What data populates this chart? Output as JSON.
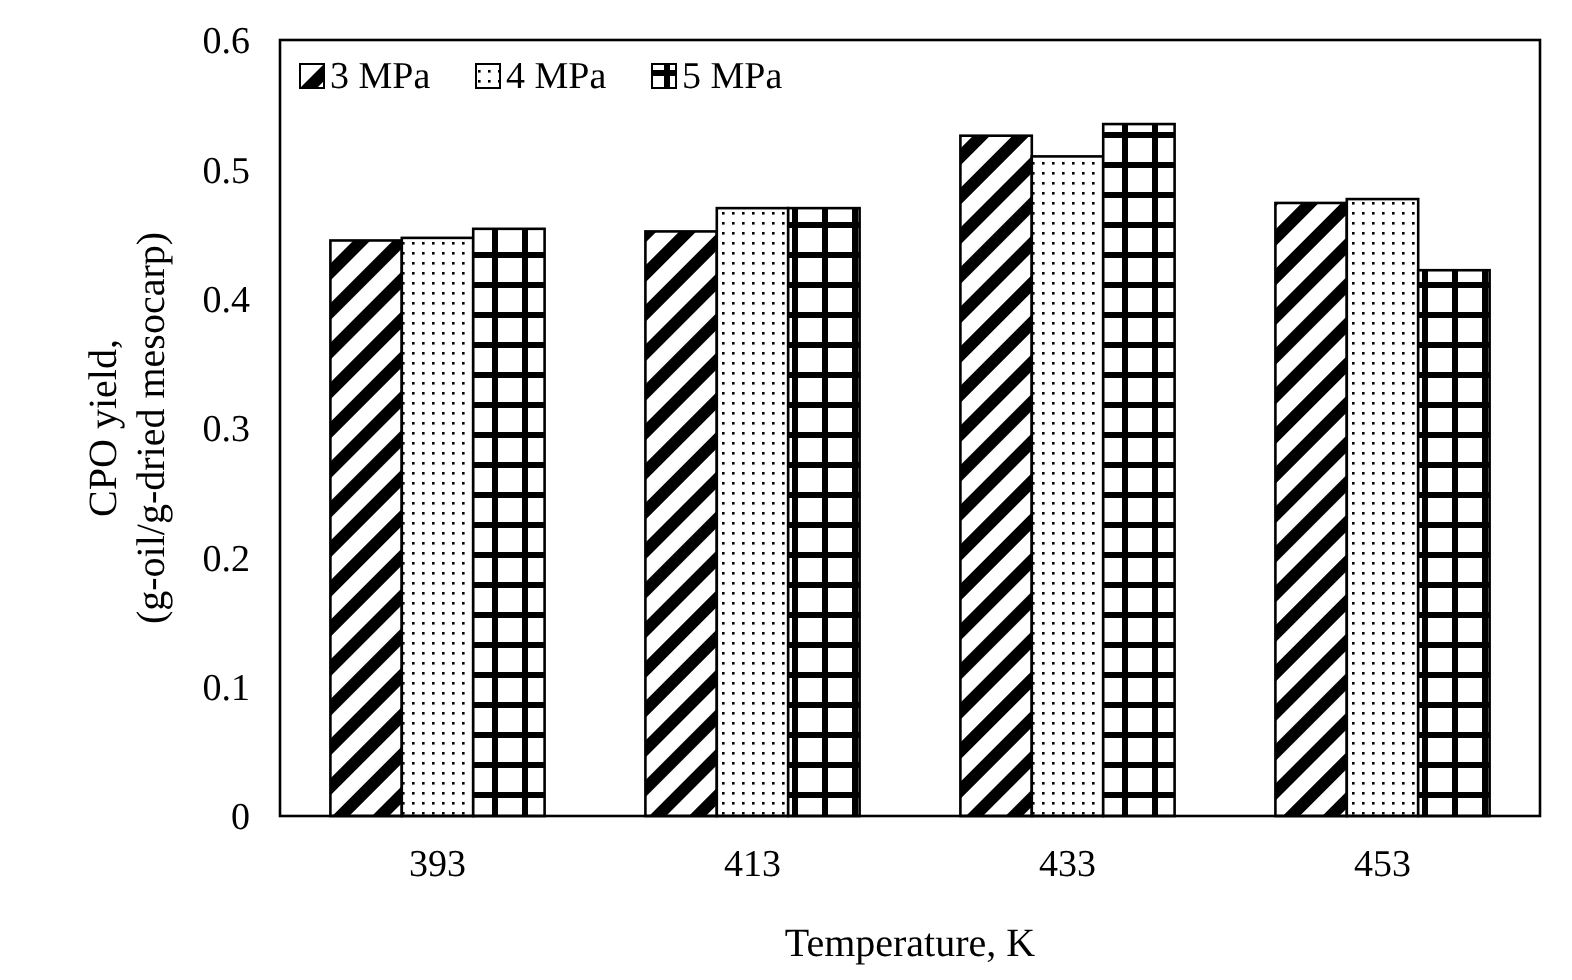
{
  "chart_data": {
    "type": "bar",
    "xlabel": "Temperature, K",
    "ylabel": "CPO yield,\n(g-oil/g-dried mesocarp)",
    "categories": [
      "393",
      "413",
      "433",
      "453"
    ],
    "series": [
      {
        "name": "3 MPa",
        "color": "#000000",
        "values": [
          0.445,
          0.452,
          0.526,
          0.474
        ]
      },
      {
        "name": "4 MPa",
        "color": "#000000",
        "values": [
          0.447,
          0.47,
          0.51,
          0.477
        ]
      },
      {
        "name": "5 MPa",
        "color": "#000000",
        "values": [
          0.454,
          0.47,
          0.535,
          0.422
        ]
      }
    ],
    "ylim": [
      0,
      0.6
    ],
    "yticks": [
      0,
      0.1,
      0.2,
      0.3,
      0.4,
      0.5,
      0.6
    ],
    "grid": false,
    "legend": "top left"
  }
}
